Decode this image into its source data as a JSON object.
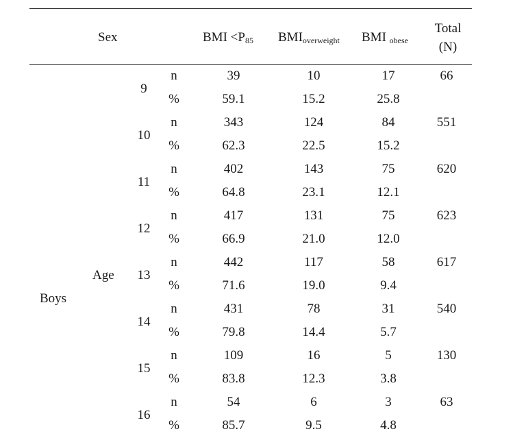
{
  "header": {
    "sex": "Sex",
    "bmi_low_main": "BMI <P",
    "bmi_low_sub": "85",
    "bmi_over_main": "BMI",
    "bmi_over_sub": "overweight",
    "bmi_obese_main": "BMI ",
    "bmi_obese_sub": "obese",
    "total_line1": "Total",
    "total_line2": "(N)"
  },
  "group": {
    "sex": "Boys",
    "factor": "Age"
  },
  "labels": {
    "n": "n",
    "pct": "%"
  },
  "rows": [
    {
      "age": "9",
      "n": [
        "39",
        "10",
        "17"
      ],
      "pct": [
        "59.1",
        "15.2",
        "25.8"
      ],
      "total": "66"
    },
    {
      "age": "10",
      "n": [
        "343",
        "124",
        "84"
      ],
      "pct": [
        "62.3",
        "22.5",
        "15.2"
      ],
      "total": "551"
    },
    {
      "age": "11",
      "n": [
        "402",
        "143",
        "75"
      ],
      "pct": [
        "64.8",
        "23.1",
        "12.1"
      ],
      "total": "620"
    },
    {
      "age": "12",
      "n": [
        "417",
        "131",
        "75"
      ],
      "pct": [
        "66.9",
        "21.0",
        "12.0"
      ],
      "total": "623"
    },
    {
      "age": "13",
      "n": [
        "442",
        "117",
        "58"
      ],
      "pct": [
        "71.6",
        "19.0",
        "9.4"
      ],
      "total": "617"
    },
    {
      "age": "14",
      "n": [
        "431",
        "78",
        "31"
      ],
      "pct": [
        "79.8",
        "14.4",
        "5.7"
      ],
      "total": "540"
    },
    {
      "age": "15",
      "n": [
        "109",
        "16",
        "5"
      ],
      "pct": [
        "83.8",
        "12.3",
        "3.8"
      ],
      "total": "130"
    },
    {
      "age": "16",
      "n": [
        "54",
        "6",
        "3"
      ],
      "pct": [
        "85.7",
        "9.5",
        "4.8"
      ],
      "total": "63"
    }
  ]
}
